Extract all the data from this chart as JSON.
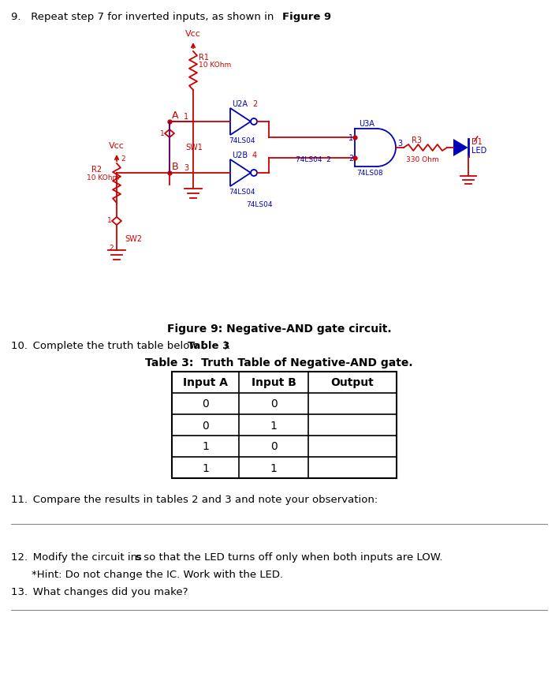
{
  "figure_caption": "Figure 9: Negative-AND gate circuit.",
  "table_title": "Table 3:  Truth Table of Negative-AND gate.",
  "table_headers": [
    "Input A",
    "Input B",
    "Output"
  ],
  "table_rows": [
    [
      "0",
      "0",
      ""
    ],
    [
      "0",
      "1",
      ""
    ],
    [
      "1",
      "0",
      ""
    ],
    [
      "1",
      "1",
      ""
    ]
  ],
  "step11_text": "11. Compare the results in tables 2 and 3 and note your observation:",
  "step13_text": "13. What changes did you make?",
  "bg_color": "#ffffff",
  "red": "#cc0000",
  "blue": "#0000bb",
  "purple": "#660066"
}
